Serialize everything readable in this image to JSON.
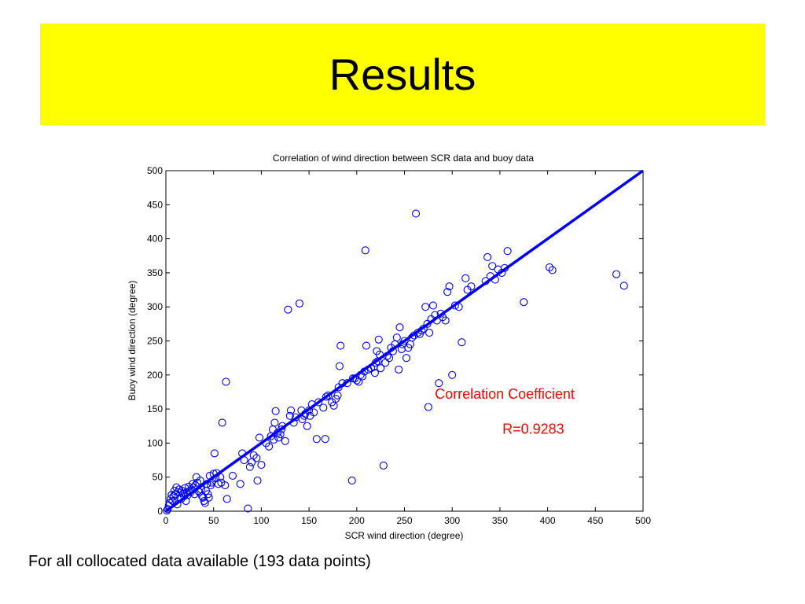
{
  "slide": {
    "title": "Results",
    "caption": "For all collocated data available (193 data points)",
    "banner_color": "#ffff00"
  },
  "chart_data": {
    "type": "scatter",
    "title": "Correlation of wind direction between SCR data and buoy data",
    "xlabel": "SCR wind direction (degree)",
    "ylabel": "Buoy wind direction (degree)",
    "xlim": [
      0,
      500
    ],
    "ylim": [
      0,
      500
    ],
    "xticks": [
      0,
      50,
      100,
      150,
      200,
      250,
      300,
      350,
      400,
      450,
      500
    ],
    "yticks": [
      0,
      50,
      100,
      150,
      200,
      250,
      300,
      350,
      400,
      450,
      500
    ],
    "grid": false,
    "marker": "circle",
    "marker_color": "#0000ff",
    "fit_line": {
      "x": [
        0,
        500
      ],
      "y": [
        0,
        500
      ],
      "color": "#0000ff"
    },
    "annotations": [
      {
        "text": "Correlation Coefficient",
        "x": 355,
        "y": 165,
        "color": "#ff0000"
      },
      {
        "text": "R=0.9283",
        "x": 385,
        "y": 114,
        "color": "#ff0000"
      }
    ],
    "points": [
      [
        1,
        1
      ],
      [
        2,
        3
      ],
      [
        3,
        8
      ],
      [
        4,
        12
      ],
      [
        5,
        18
      ],
      [
        6,
        24
      ],
      [
        7,
        15
      ],
      [
        8,
        22
      ],
      [
        9,
        30
      ],
      [
        10,
        25
      ],
      [
        11,
        35
      ],
      [
        12,
        10
      ],
      [
        13,
        28
      ],
      [
        14,
        32
      ],
      [
        15,
        20
      ],
      [
        16,
        18
      ],
      [
        17,
        30
      ],
      [
        18,
        26
      ],
      [
        19,
        22
      ],
      [
        20,
        34
      ],
      [
        21,
        15
      ],
      [
        22,
        28
      ],
      [
        23,
        24
      ],
      [
        24,
        36
      ],
      [
        25,
        30
      ],
      [
        26,
        28
      ],
      [
        27,
        32
      ],
      [
        28,
        40
      ],
      [
        29,
        35
      ],
      [
        30,
        25
      ],
      [
        31,
        38
      ],
      [
        32,
        50
      ],
      [
        33,
        42
      ],
      [
        34,
        30
      ],
      [
        35,
        28
      ],
      [
        36,
        45
      ],
      [
        37,
        32
      ],
      [
        38,
        22
      ],
      [
        39,
        20
      ],
      [
        40,
        15
      ],
      [
        41,
        12
      ],
      [
        42,
        30
      ],
      [
        43,
        40
      ],
      [
        44,
        25
      ],
      [
        45,
        20
      ],
      [
        46,
        52
      ],
      [
        47,
        38
      ],
      [
        48,
        42
      ],
      [
        49,
        45
      ],
      [
        50,
        55
      ],
      [
        51,
        85
      ],
      [
        52,
        48
      ],
      [
        53,
        56
      ],
      [
        55,
        40
      ],
      [
        57,
        50
      ],
      [
        58,
        42
      ],
      [
        59,
        130
      ],
      [
        62,
        38
      ],
      [
        63,
        190
      ],
      [
        64,
        18
      ],
      [
        70,
        52
      ],
      [
        78,
        40
      ],
      [
        80,
        85
      ],
      [
        82,
        75
      ],
      [
        86,
        4
      ],
      [
        88,
        65
      ],
      [
        90,
        72
      ],
      [
        92,
        82
      ],
      [
        95,
        78
      ],
      [
        96,
        45
      ],
      [
        98,
        108
      ],
      [
        100,
        68
      ],
      [
        105,
        100
      ],
      [
        108,
        95
      ],
      [
        110,
        110
      ],
      [
        112,
        120
      ],
      [
        113,
        105
      ],
      [
        114,
        130
      ],
      [
        115,
        147
      ],
      [
        117,
        115
      ],
      [
        118,
        108
      ],
      [
        120,
        113
      ],
      [
        121,
        120
      ],
      [
        122,
        125
      ],
      [
        125,
        103
      ],
      [
        128,
        296
      ],
      [
        130,
        140
      ],
      [
        131,
        148
      ],
      [
        134,
        130
      ],
      [
        136,
        138
      ],
      [
        140,
        305
      ],
      [
        142,
        148
      ],
      [
        143,
        135
      ],
      [
        145,
        140
      ],
      [
        146,
        143
      ],
      [
        148,
        125
      ],
      [
        150,
        148
      ],
      [
        151,
        140
      ],
      [
        153,
        157
      ],
      [
        155,
        145
      ],
      [
        158,
        106
      ],
      [
        160,
        160
      ],
      [
        165,
        152
      ],
      [
        167,
        106
      ],
      [
        168,
        168
      ],
      [
        170,
        170
      ],
      [
        174,
        160
      ],
      [
        176,
        155
      ],
      [
        178,
        165
      ],
      [
        180,
        170
      ],
      [
        181,
        182
      ],
      [
        182,
        213
      ],
      [
        183,
        243
      ],
      [
        185,
        188
      ],
      [
        190,
        188
      ],
      [
        195,
        45
      ],
      [
        196,
        195
      ],
      [
        198,
        195
      ],
      [
        200,
        192
      ],
      [
        202,
        190
      ],
      [
        204,
        200
      ],
      [
        206,
        198
      ],
      [
        208,
        205
      ],
      [
        209,
        383
      ],
      [
        210,
        243
      ],
      [
        212,
        208
      ],
      [
        215,
        210
      ],
      [
        218,
        212
      ],
      [
        219,
        203
      ],
      [
        220,
        218
      ],
      [
        221,
        235
      ],
      [
        222,
        220
      ],
      [
        223,
        252
      ],
      [
        224,
        230
      ],
      [
        225,
        210
      ],
      [
        228,
        67
      ],
      [
        230,
        218
      ],
      [
        232,
        228
      ],
      [
        234,
        225
      ],
      [
        236,
        240
      ],
      [
        238,
        235
      ],
      [
        240,
        245
      ],
      [
        242,
        255
      ],
      [
        244,
        208
      ],
      [
        245,
        270
      ],
      [
        247,
        238
      ],
      [
        248,
        245
      ],
      [
        250,
        250
      ],
      [
        252,
        225
      ],
      [
        254,
        240
      ],
      [
        256,
        245
      ],
      [
        258,
        255
      ],
      [
        260,
        258
      ],
      [
        262,
        437
      ],
      [
        264,
        262
      ],
      [
        266,
        260
      ],
      [
        268,
        265
      ],
      [
        270,
        268
      ],
      [
        272,
        300
      ],
      [
        274,
        275
      ],
      [
        275,
        153
      ],
      [
        276,
        262
      ],
      [
        278,
        282
      ],
      [
        280,
        302
      ],
      [
        282,
        288
      ],
      [
        284,
        280
      ],
      [
        286,
        188
      ],
      [
        288,
        290
      ],
      [
        290,
        285
      ],
      [
        293,
        280
      ],
      [
        295,
        322
      ],
      [
        297,
        330
      ],
      [
        300,
        200
      ],
      [
        303,
        302
      ],
      [
        307,
        300
      ],
      [
        310,
        248
      ],
      [
        314,
        342
      ],
      [
        316,
        325
      ],
      [
        320,
        330
      ],
      [
        335,
        338
      ],
      [
        337,
        373
      ],
      [
        340,
        345
      ],
      [
        342,
        360
      ],
      [
        345,
        340
      ],
      [
        348,
        355
      ],
      [
        352,
        350
      ],
      [
        355,
        357
      ],
      [
        358,
        382
      ],
      [
        375,
        307
      ],
      [
        402,
        358
      ],
      [
        405,
        354
      ],
      [
        472,
        348
      ],
      [
        480,
        331
      ]
    ]
  }
}
